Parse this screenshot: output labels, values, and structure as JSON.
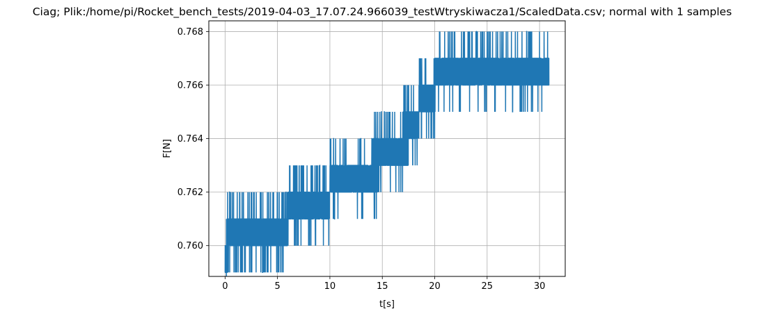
{
  "chart_data": {
    "type": "line",
    "title": "Ciag; Plik:/home/pi/Rocket_bench_tests/2019-04-03_17.07.24.966039_testWtryskiwacza1/ScaledData.csv; normal with 1 samples",
    "xlabel": "t[s]",
    "ylabel": "F[N]",
    "xlim": [
      -1.55,
      32.45
    ],
    "ylim": [
      0.75885,
      0.7684
    ],
    "xticks": [
      0,
      5,
      10,
      15,
      20,
      25,
      30
    ],
    "xtick_labels": [
      "0",
      "5",
      "10",
      "15",
      "20",
      "25",
      "30"
    ],
    "yticks": [
      0.76,
      0.762,
      0.764,
      0.766,
      0.768
    ],
    "ytick_labels": [
      "0.760",
      "0.762",
      "0.764",
      "0.766",
      "0.768"
    ],
    "grid": true,
    "series": [
      {
        "color": "#1f77b4",
        "x": [
          0.0,
          0.2,
          0.5,
          0.8,
          1.2,
          1.6,
          2.0,
          2.4,
          2.8,
          3.2,
          3.6,
          4.0,
          4.4,
          4.8,
          5.2,
          5.6,
          6.0,
          6.4,
          6.8,
          7.2,
          7.6,
          8.0,
          8.5,
          9.0,
          9.5,
          10.0,
          10.5,
          11.0,
          11.5,
          12.0,
          12.5,
          13.0,
          13.5,
          14.0,
          14.5,
          15.0,
          15.5,
          16.0,
          16.5,
          17.0,
          17.5,
          18.0,
          18.5,
          19.0,
          19.5,
          20.0,
          20.5,
          21.0,
          21.5,
          22.0,
          22.5,
          23.0,
          23.5,
          24.0,
          24.5,
          25.0,
          25.5,
          26.0,
          26.5,
          27.0,
          27.5,
          28.0,
          28.5,
          29.0,
          29.5,
          30.0,
          30.5,
          30.9
        ],
        "y": [
          0.759,
          0.76,
          0.761,
          0.76,
          0.761,
          0.76,
          0.761,
          0.76,
          0.761,
          0.76,
          0.761,
          0.76,
          0.761,
          0.76,
          0.761,
          0.76,
          0.761,
          0.762,
          0.761,
          0.762,
          0.761,
          0.762,
          0.761,
          0.762,
          0.761,
          0.762,
          0.763,
          0.762,
          0.763,
          0.762,
          0.763,
          0.762,
          0.763,
          0.762,
          0.764,
          0.763,
          0.764,
          0.763,
          0.764,
          0.763,
          0.765,
          0.764,
          0.765,
          0.766,
          0.765,
          0.766,
          0.767,
          0.766,
          0.767,
          0.766,
          0.767,
          0.766,
          0.767,
          0.766,
          0.767,
          0.766,
          0.767,
          0.766,
          0.767,
          0.766,
          0.767,
          0.766,
          0.767,
          0.766,
          0.767,
          0.766,
          0.767,
          0.766
        ]
      }
    ]
  }
}
